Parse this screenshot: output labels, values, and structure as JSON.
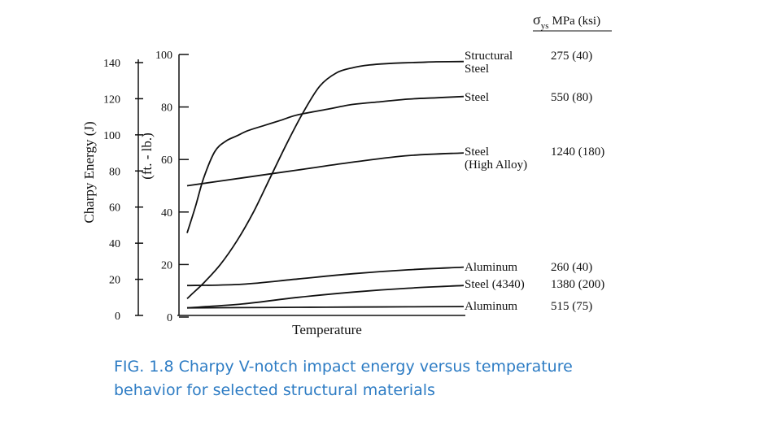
{
  "chart_data": {
    "type": "line",
    "xlabel": "Temperature",
    "ylabel_left": "Charpy Energy (J)",
    "ylabel_right": "(ft. - lb.)",
    "yticks_J": [
      "140",
      "120",
      "100",
      "80",
      "60",
      "40",
      "20",
      "0"
    ],
    "yticks_ftlb": [
      "100",
      "80",
      "60",
      "40",
      "20",
      "0"
    ],
    "ylim_ftlb": [
      0,
      100
    ],
    "x_ticks": false,
    "grid": false,
    "strength_header": {
      "symbol": "σ",
      "subscript": "ys",
      "units": "MPa (ksi)"
    },
    "series": [
      {
        "name_lines": [
          "Structural",
          "Steel"
        ],
        "strength": "275 (40)",
        "x": [
          0,
          2,
          6,
          12,
          18,
          24,
          30,
          36,
          42,
          48,
          54,
          60,
          66,
          72,
          78,
          84,
          90,
          100
        ],
        "values": [
          7,
          9,
          13,
          20,
          29,
          40,
          53,
          66,
          78,
          88,
          93,
          95,
          96,
          96.5,
          96.8,
          97,
          97.2,
          97.3
        ]
      },
      {
        "name_lines": [
          "Steel"
        ],
        "strength": "550 (80)",
        "x": [
          0,
          3,
          6,
          10,
          14,
          18,
          22,
          28,
          34,
          40,
          50,
          60,
          70,
          80,
          90,
          100
        ],
        "values": [
          32,
          42,
          53,
          63,
          67,
          69,
          71,
          73,
          75,
          77,
          79,
          81,
          82,
          83,
          83.5,
          84
        ]
      },
      {
        "name_lines": [
          "Steel",
          "(High Alloy)"
        ],
        "strength": "1240 (180)",
        "x": [
          0,
          20,
          40,
          60,
          80,
          100
        ],
        "values": [
          50,
          53,
          56,
          59,
          61.5,
          62.5
        ]
      },
      {
        "name_lines": [
          "Aluminum"
        ],
        "strength": "260 (40)",
        "x": [
          0,
          20,
          40,
          60,
          80,
          100
        ],
        "values": [
          12,
          12.5,
          14.5,
          16.5,
          18,
          19
        ]
      },
      {
        "name_lines": [
          "Steel (4340)"
        ],
        "strength": "1380 (200)",
        "x": [
          0,
          20,
          40,
          60,
          80,
          100
        ],
        "values": [
          3.5,
          5,
          7.5,
          9.5,
          11,
          12
        ]
      },
      {
        "name_lines": [
          "Aluminum"
        ],
        "strength": "515 (75)",
        "x": [
          0,
          20,
          40,
          60,
          80,
          100
        ],
        "values": [
          3.5,
          3.6,
          3.7,
          3.8,
          3.9,
          4.0
        ]
      }
    ]
  },
  "caption": {
    "line1": "FIG. 1.8 Charpy V-notch impact energy versus temperature",
    "line2": "behavior for selected structural materials"
  }
}
